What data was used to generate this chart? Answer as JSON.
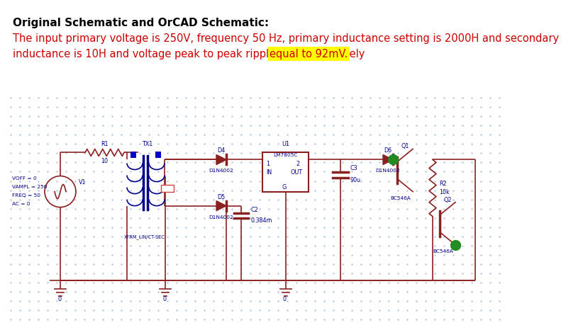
{
  "title": "Original Schematic and OrCAD Schematic:",
  "desc_line1": "The input primary voltage is 250V, frequency 50 Hz, primary inductance setting is 2000H and secondary",
  "desc_line2": "inductance is 10H and voltage peak to peak ripple is approximately ",
  "highlight": "equal to 92mV.",
  "wire_color": "#8B2020",
  "comp_color": "#00008B",
  "green_color": "#228B22",
  "bg_color": "#dce8f2",
  "dot_color": "#aabccc",
  "title_fs": 11,
  "desc_fs": 10.5
}
